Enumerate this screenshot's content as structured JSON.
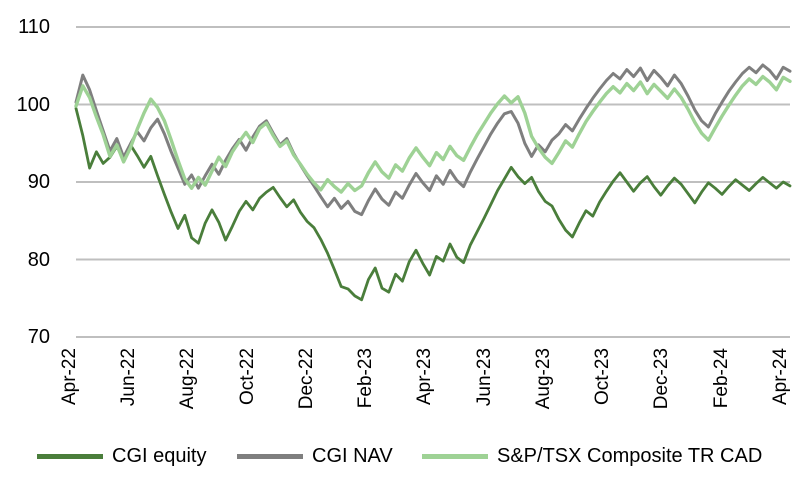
{
  "chart_data": {
    "type": "line",
    "title": "",
    "xlabel": "",
    "ylabel": "",
    "ylim": [
      70,
      110
    ],
    "grid": "horizontal",
    "legend_position": "bottom",
    "background_color": "#ffffff",
    "gridline_color": "#bfbfbf",
    "axis_text_color": "#000000",
    "y_ticks": [
      "110",
      "100",
      "90",
      "80",
      "70"
    ],
    "y_tick_values": [
      110,
      100,
      90,
      80,
      70
    ],
    "x_tick_labels": [
      "Apr-22",
      "Jun-22",
      "Aug-22",
      "Oct-22",
      "Dec-22",
      "Feb-23",
      "Apr-23",
      "Jun-23",
      "Aug-23",
      "Oct-23",
      "Dec-23",
      "Feb-24",
      "Apr-24"
    ],
    "index_base": 100,
    "series": [
      {
        "name": "CGI equity",
        "color": "#4a7e3b",
        "stroke_width": 2.8,
        "values": [
          99.5,
          96.0,
          91.8,
          93.9,
          92.4,
          93.2,
          94.6,
          93.0,
          94.8,
          93.4,
          91.9,
          93.3,
          90.8,
          88.4,
          86.1,
          84.0,
          85.7,
          82.8,
          82.1,
          84.7,
          86.4,
          84.8,
          82.5,
          84.3,
          86.2,
          87.5,
          86.4,
          87.9,
          88.7,
          89.3,
          88.0,
          86.8,
          87.7,
          86.1,
          84.9,
          84.1,
          82.6,
          80.8,
          78.7,
          76.5,
          76.2,
          75.3,
          74.8,
          77.4,
          78.9,
          76.3,
          75.8,
          78.1,
          77.2,
          79.7,
          81.2,
          79.5,
          78.0,
          80.4,
          79.8,
          82.0,
          80.3,
          79.6,
          81.9,
          83.6,
          85.3,
          87.1,
          88.9,
          90.4,
          91.9,
          90.7,
          89.8,
          90.6,
          88.8,
          87.5,
          86.9,
          85.2,
          83.8,
          82.9,
          84.7,
          86.3,
          85.6,
          87.4,
          88.8,
          90.1,
          91.2,
          90.0,
          88.8,
          89.9,
          90.7,
          89.4,
          88.3,
          89.5,
          90.5,
          89.7,
          88.5,
          87.3,
          88.7,
          89.9,
          89.2,
          88.4,
          89.4,
          90.3,
          89.6,
          88.9,
          89.8,
          90.6,
          89.9,
          89.2,
          90.0,
          89.5
        ]
      },
      {
        "name": "CGI NAV",
        "color": "#7f7f7f",
        "stroke_width": 3.0,
        "values": [
          100.3,
          103.8,
          101.9,
          99.2,
          96.6,
          94.0,
          95.6,
          93.2,
          94.9,
          96.5,
          95.3,
          97.0,
          98.1,
          96.2,
          93.9,
          91.8,
          89.7,
          90.9,
          89.2,
          90.8,
          92.3,
          91.0,
          92.8,
          94.3,
          95.5,
          94.1,
          95.8,
          97.2,
          97.9,
          96.3,
          94.8,
          95.6,
          93.7,
          92.2,
          90.8,
          89.5,
          88.1,
          86.8,
          87.9,
          86.6,
          87.5,
          86.2,
          85.8,
          87.6,
          89.1,
          87.8,
          87.0,
          88.7,
          87.9,
          89.6,
          91.1,
          89.9,
          88.9,
          90.8,
          89.7,
          91.5,
          90.2,
          89.4,
          91.3,
          93.0,
          94.6,
          96.2,
          97.6,
          98.8,
          99.1,
          97.6,
          95.0,
          93.3,
          94.8,
          93.9,
          95.4,
          96.2,
          97.4,
          96.6,
          98.1,
          99.5,
          100.8,
          102.0,
          103.1,
          104.0,
          103.3,
          104.5,
          103.6,
          104.7,
          103.1,
          104.4,
          103.5,
          102.4,
          103.8,
          102.7,
          101.1,
          99.3,
          97.9,
          97.1,
          98.8,
          100.3,
          101.7,
          102.9,
          104.0,
          104.8,
          104.1,
          105.1,
          104.4,
          103.3,
          104.8,
          104.3
        ]
      },
      {
        "name": "S&P/TSX Composite TR CAD",
        "color": "#9ed295",
        "stroke_width": 3.4,
        "values": [
          99.8,
          102.4,
          100.9,
          98.4,
          96.1,
          93.3,
          94.8,
          92.6,
          94.4,
          96.8,
          98.9,
          100.7,
          99.6,
          97.9,
          95.4,
          92.8,
          90.4,
          89.2,
          90.6,
          89.6,
          91.4,
          93.2,
          92.0,
          93.9,
          95.2,
          96.4,
          95.1,
          96.9,
          97.6,
          96.0,
          94.6,
          95.3,
          93.5,
          92.3,
          91.0,
          89.9,
          89.0,
          90.3,
          89.4,
          88.7,
          89.8,
          88.9,
          89.5,
          91.2,
          92.6,
          91.3,
          90.5,
          92.2,
          91.4,
          93.1,
          94.4,
          93.2,
          92.1,
          93.8,
          92.9,
          94.6,
          93.4,
          92.8,
          94.5,
          96.1,
          97.5,
          98.9,
          100.1,
          101.1,
          100.2,
          101.0,
          98.9,
          95.9,
          94.4,
          93.2,
          92.4,
          93.8,
          95.3,
          94.5,
          96.2,
          97.8,
          99.1,
          100.3,
          101.4,
          102.3,
          101.5,
          102.7,
          101.8,
          102.9,
          101.4,
          102.6,
          101.7,
          100.8,
          102.0,
          100.9,
          99.4,
          97.7,
          96.3,
          95.4,
          97.0,
          98.5,
          99.9,
          101.2,
          102.4,
          103.3,
          102.6,
          103.6,
          102.9,
          101.9,
          103.5,
          103.0
        ]
      }
    ]
  }
}
